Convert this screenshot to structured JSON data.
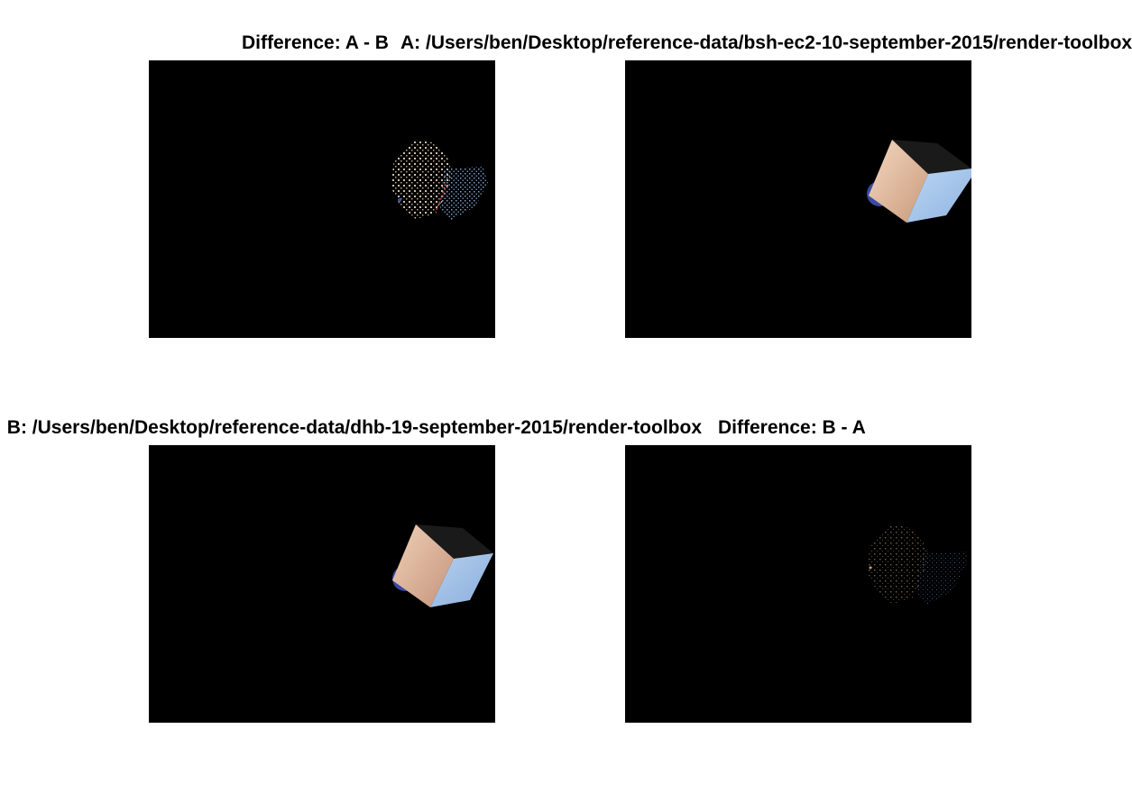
{
  "panels": {
    "diff_ab": {
      "title": "Difference: A - B"
    },
    "render_a": {
      "title": "A: /Users/ben/Desktop/reference-data/bsh-ec2-10-september-2015/render-toolbox"
    },
    "render_b": {
      "title": "B: /Users/ben/Desktop/reference-data/dhb-19-september-2015/render-toolbox"
    },
    "diff_ba": {
      "title": "Difference: B - A"
    }
  },
  "colors": {
    "figure_background": "#ffffff",
    "axes_background": "#000000",
    "cube_lit_face": "#e8c2a8",
    "cube_side_face": "#a8c8ec",
    "cube_dark_face": "#1a1a1a",
    "sphere": "#3a4aa0"
  }
}
